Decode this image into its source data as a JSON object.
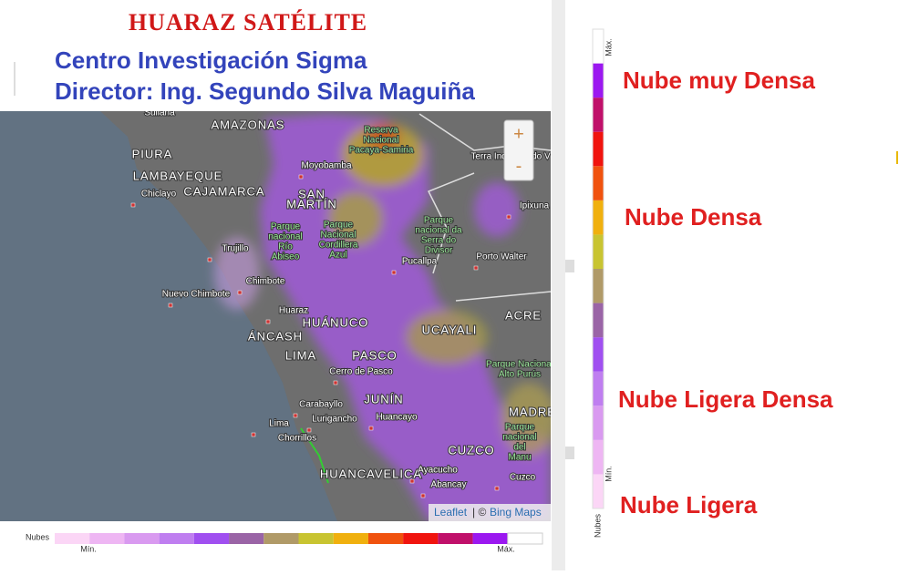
{
  "header": {
    "title": "HUARAZ SATÉLITE",
    "lines": [
      "Centro Investigación Sigma",
      "Director: Ing. Segundo Silva Maguiña"
    ]
  },
  "map": {
    "zoom": [
      "+",
      "-"
    ],
    "attribution": [
      "Leaflet",
      "| ©",
      "Bing Maps"
    ],
    "places": [
      {
        "lines": [
          "Sullana"
        ]
      },
      {
        "lines": [
          "AMAZONAS"
        ]
      },
      {
        "lines": [
          "Reserva",
          "Nacional",
          "Pacaya-Samiria"
        ]
      },
      {
        "lines": [
          "PIURA"
        ]
      },
      {
        "lines": [
          "Moyobamba"
        ]
      },
      {
        "lines": [
          "Terra Indigena do V"
        ]
      },
      {
        "lines": [
          "LAMBAYEQUE"
        ]
      },
      {
        "lines": [
          "Chiclayo"
        ]
      },
      {
        "lines": [
          "CAJAMARCA"
        ]
      },
      {
        "lines": [
          "SAN",
          "MARTÍN"
        ]
      },
      {
        "lines": [
          "Ipixuna"
        ]
      },
      {
        "lines": [
          "Parque",
          "nacional",
          "Río",
          "Abiseo"
        ]
      },
      {
        "lines": [
          "Parque",
          "Nacional",
          "Cordillera",
          "Azul"
        ]
      },
      {
        "lines": [
          "Parque",
          "nacional da",
          "Serra do",
          "Divisor"
        ]
      },
      {
        "lines": [
          "Trujillo"
        ]
      },
      {
        "lines": [
          "Pucallpa"
        ]
      },
      {
        "lines": [
          "Porto Walter"
        ]
      },
      {
        "lines": [
          "Chimbote"
        ]
      },
      {
        "lines": [
          "Nuevo Chimbote"
        ]
      },
      {
        "lines": [
          "Huaraz"
        ]
      },
      {
        "lines": [
          "HUÁNUCO"
        ]
      },
      {
        "lines": [
          "ACRE"
        ]
      },
      {
        "lines": [
          "UCAYALI"
        ]
      },
      {
        "lines": [
          "ÁNCASH"
        ]
      },
      {
        "lines": [
          "LIMA"
        ]
      },
      {
        "lines": [
          "PASCO"
        ]
      },
      {
        "lines": [
          "Parque Nacional",
          "Alto Purús"
        ]
      },
      {
        "lines": [
          "Cerro de Pasco"
        ]
      },
      {
        "lines": [
          "Carabayllo"
        ]
      },
      {
        "lines": [
          "JUNÍN"
        ]
      },
      {
        "lines": [
          "Lurigancho"
        ]
      },
      {
        "lines": [
          "Huancayo"
        ]
      },
      {
        "lines": [
          "MADRE"
        ]
      },
      {
        "lines": [
          "Lima"
        ]
      },
      {
        "lines": [
          "Chorrillos"
        ]
      },
      {
        "lines": [
          "Parque",
          "nacional",
          "del",
          "Manu"
        ]
      },
      {
        "lines": [
          "CUZCO"
        ]
      },
      {
        "lines": [
          "HUANCAVELICA"
        ]
      },
      {
        "lines": [
          "Ayacucho"
        ]
      },
      {
        "lines": [
          "Cuzco"
        ]
      },
      {
        "lines": [
          "Abancay"
        ]
      }
    ]
  },
  "legend": {
    "title": "Nubes",
    "min": "Mín.",
    "max": "Máx.",
    "colors": [
      "#fbd6f6",
      "#eeb6f3",
      "#d99af0",
      "#bf7ef0",
      "#a04ff0",
      "#9a64a6",
      "#b09a68",
      "#c8c431",
      "#f0b00e",
      "#f0520e",
      "#f0140e",
      "#c0106a",
      "#9b18f0",
      "#ffffff"
    ]
  },
  "classes": [
    "Nube muy Densa",
    "Nube Densa",
    "Nube Ligera Densa",
    "Nube Ligera"
  ]
}
